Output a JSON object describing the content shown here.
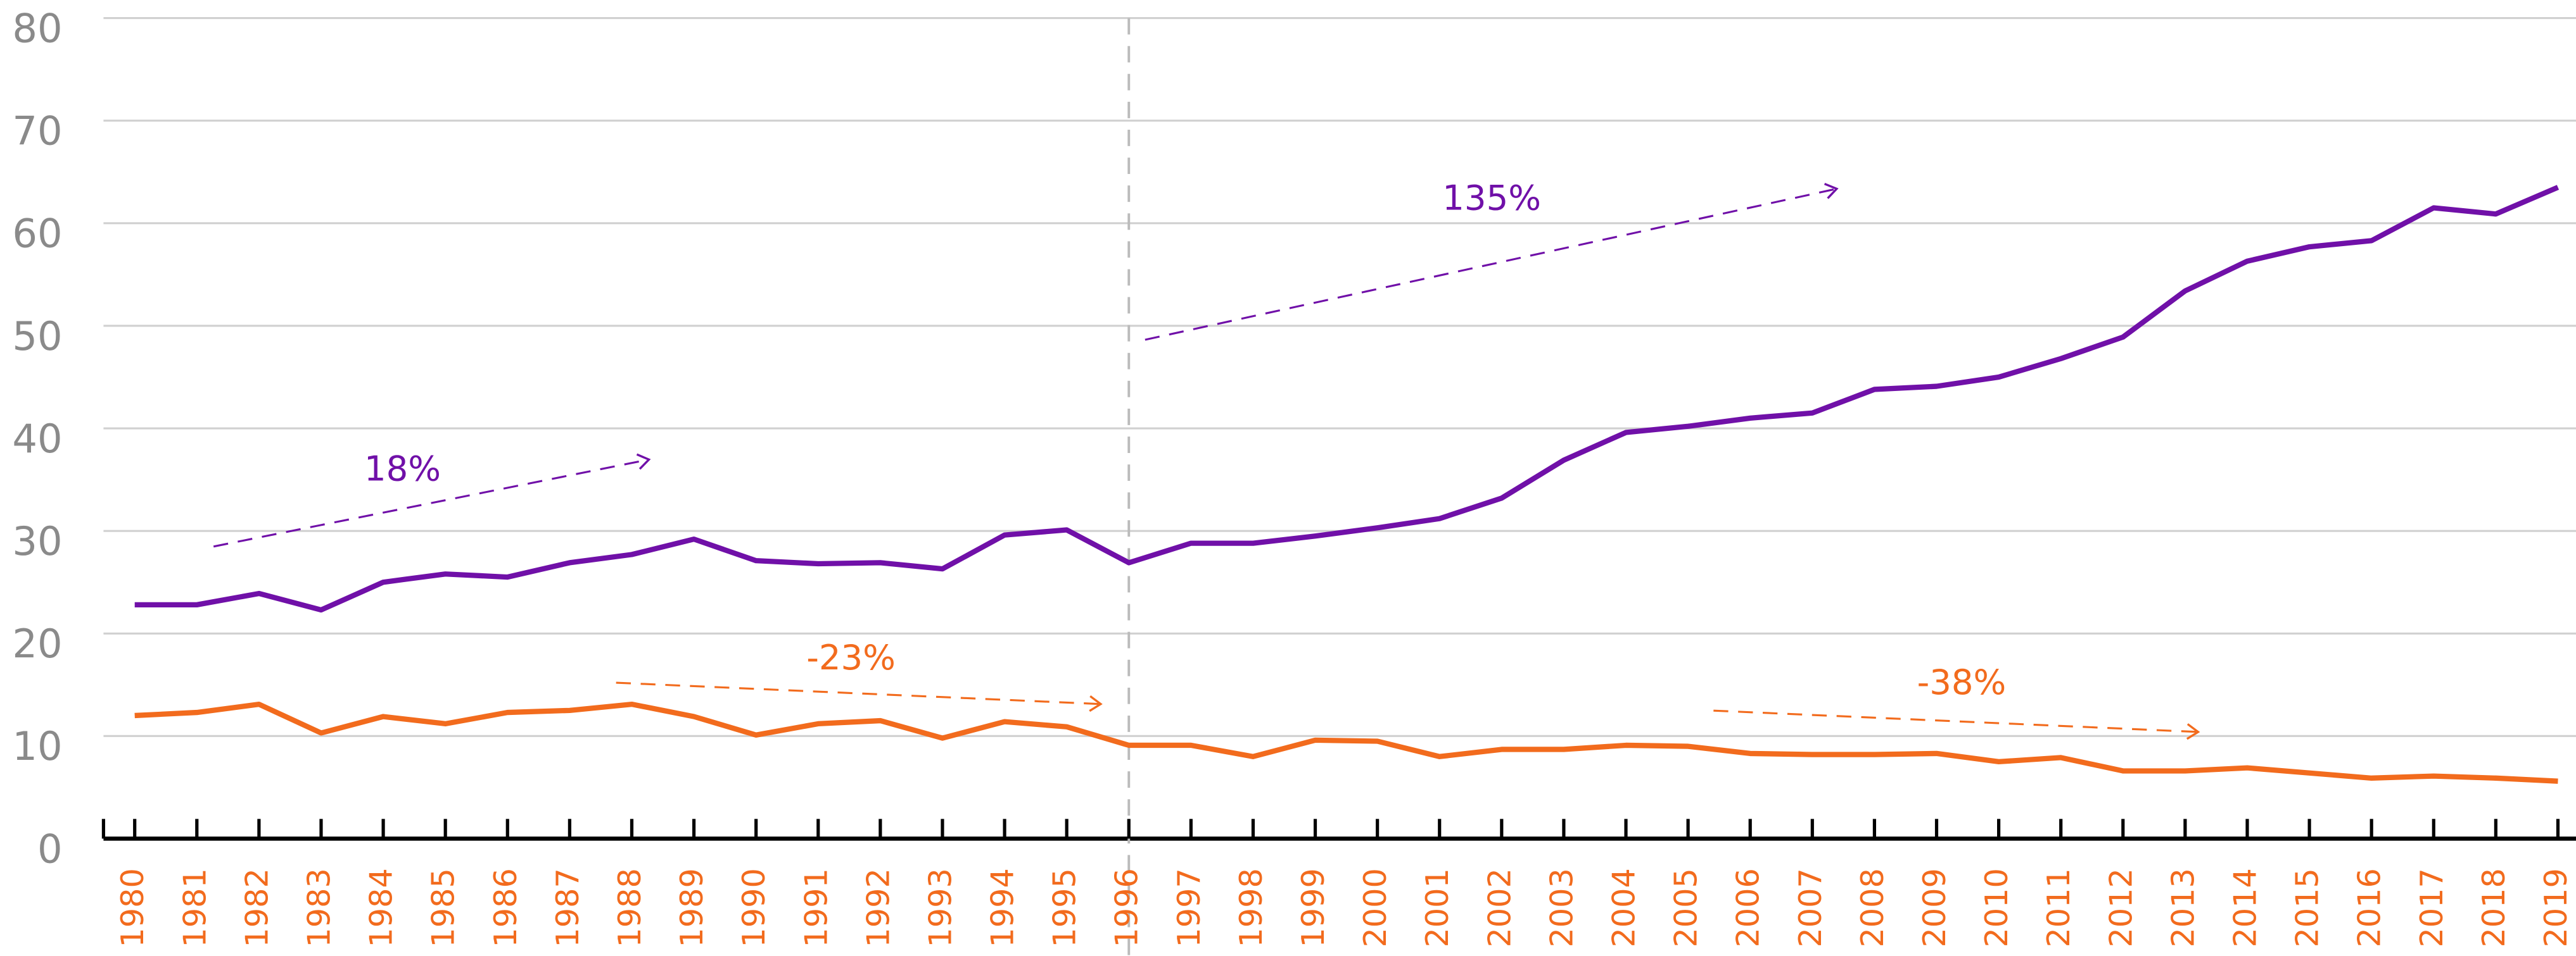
{
  "chart_data": {
    "type": "line",
    "categories": [
      "1980",
      "1981",
      "1982",
      "1983",
      "1984",
      "1985",
      "1986",
      "1987",
      "1988",
      "1989",
      "1990",
      "1991",
      "1992",
      "1993",
      "1994",
      "1995",
      "1996",
      "1997",
      "1998",
      "1999",
      "2000",
      "2001",
      "2002",
      "2003",
      "2004",
      "2005",
      "2006",
      "2007",
      "2008",
      "2009",
      "2010",
      "2011",
      "2012",
      "2013",
      "2014",
      "2015",
      "2016",
      "2017",
      "2018",
      "2019"
    ],
    "series": [
      {
        "color": "#7010a8",
        "values": [
          22.8,
          22.8,
          23.9,
          22.3,
          25.0,
          25.8,
          25.5,
          26.9,
          27.7,
          29.2,
          27.1,
          26.8,
          26.9,
          26.3,
          29.6,
          30.1,
          26.9,
          28.8,
          28.8,
          29.5,
          30.3,
          31.2,
          33.2,
          36.9,
          39.6,
          40.2,
          41.0,
          41.5,
          43.8,
          44.1,
          45.0,
          46.8,
          48.9,
          53.4,
          56.3,
          57.7,
          58.3,
          61.5,
          60.9,
          63.5
        ]
      },
      {
        "color": "#f26b1d",
        "values": [
          12.0,
          12.3,
          13.1,
          10.3,
          11.9,
          11.2,
          12.3,
          12.5,
          13.1,
          11.9,
          10.1,
          11.2,
          11.5,
          9.8,
          11.4,
          10.9,
          9.1,
          9.1,
          8.0,
          9.6,
          9.5,
          8.0,
          8.7,
          8.7,
          9.1,
          9.0,
          8.3,
          8.2,
          8.2,
          8.3,
          7.5,
          7.9,
          6.6,
          6.6,
          6.9,
          6.4,
          5.9,
          6.1,
          5.9,
          5.6
        ]
      }
    ],
    "annotations": [
      {
        "text": "18%",
        "color": "#7010a8"
      },
      {
        "text": "135%",
        "color": "#7010a8"
      },
      {
        "text": "-23%",
        "color": "#f26b1d"
      },
      {
        "text": "-38%",
        "color": "#f26b1d"
      }
    ],
    "ylim": [
      0,
      80
    ],
    "yticks": [
      0,
      10,
      20,
      30,
      40,
      50,
      60,
      70,
      80
    ],
    "grid": true
  }
}
